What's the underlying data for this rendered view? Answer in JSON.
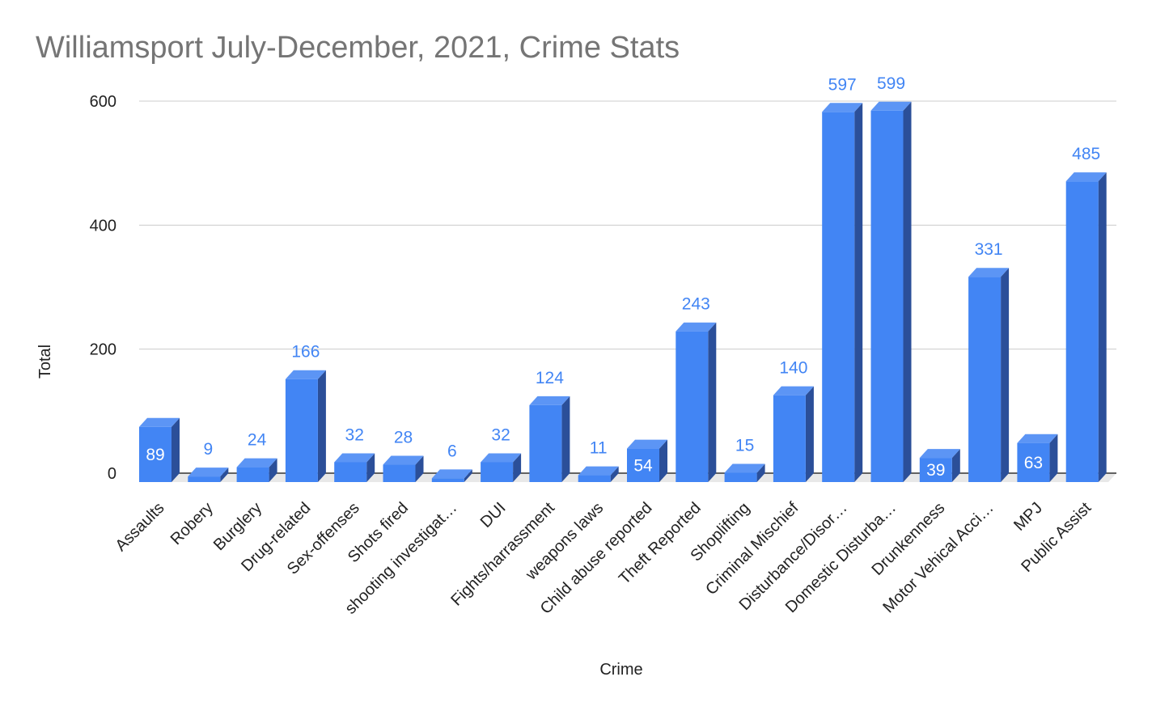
{
  "chart_data": {
    "type": "bar",
    "title": "Williamsport July-December, 2021, Crime Stats",
    "xlabel": "Crime",
    "ylabel": "Total",
    "ylim": [
      0,
      600
    ],
    "yticks": [
      0,
      200,
      400,
      600
    ],
    "grid": true,
    "legend": "none",
    "categories": [
      "Assaults",
      "Robery",
      "Burglery",
      "Drug-related",
      "Sex-offenses",
      "Shots fired",
      "shooting investigat…",
      "DUI",
      "Fights/harrassment",
      "weapons laws",
      "Child abuse reported",
      "Theft Reported",
      "Shoplifting",
      "Criminal Mischief",
      "Disturbance/Disor…",
      "Domestic Disturba…",
      "Drunkenness",
      "Motor Vehical Acci…",
      "MPJ",
      "Public Assist"
    ],
    "values": [
      89,
      9,
      24,
      166,
      32,
      28,
      6,
      32,
      124,
      11,
      54,
      243,
      15,
      140,
      597,
      599,
      39,
      331,
      63,
      485
    ],
    "label_inside": [
      true,
      false,
      false,
      false,
      false,
      false,
      false,
      false,
      false,
      false,
      true,
      false,
      false,
      false,
      false,
      false,
      true,
      false,
      true,
      false
    ],
    "colors": {
      "bar_front": "#4285f4",
      "bar_side": "#2b4f99",
      "bar_top": "#5c95f5",
      "label": "#4285f4",
      "inside_label": "#ffffff"
    }
  }
}
